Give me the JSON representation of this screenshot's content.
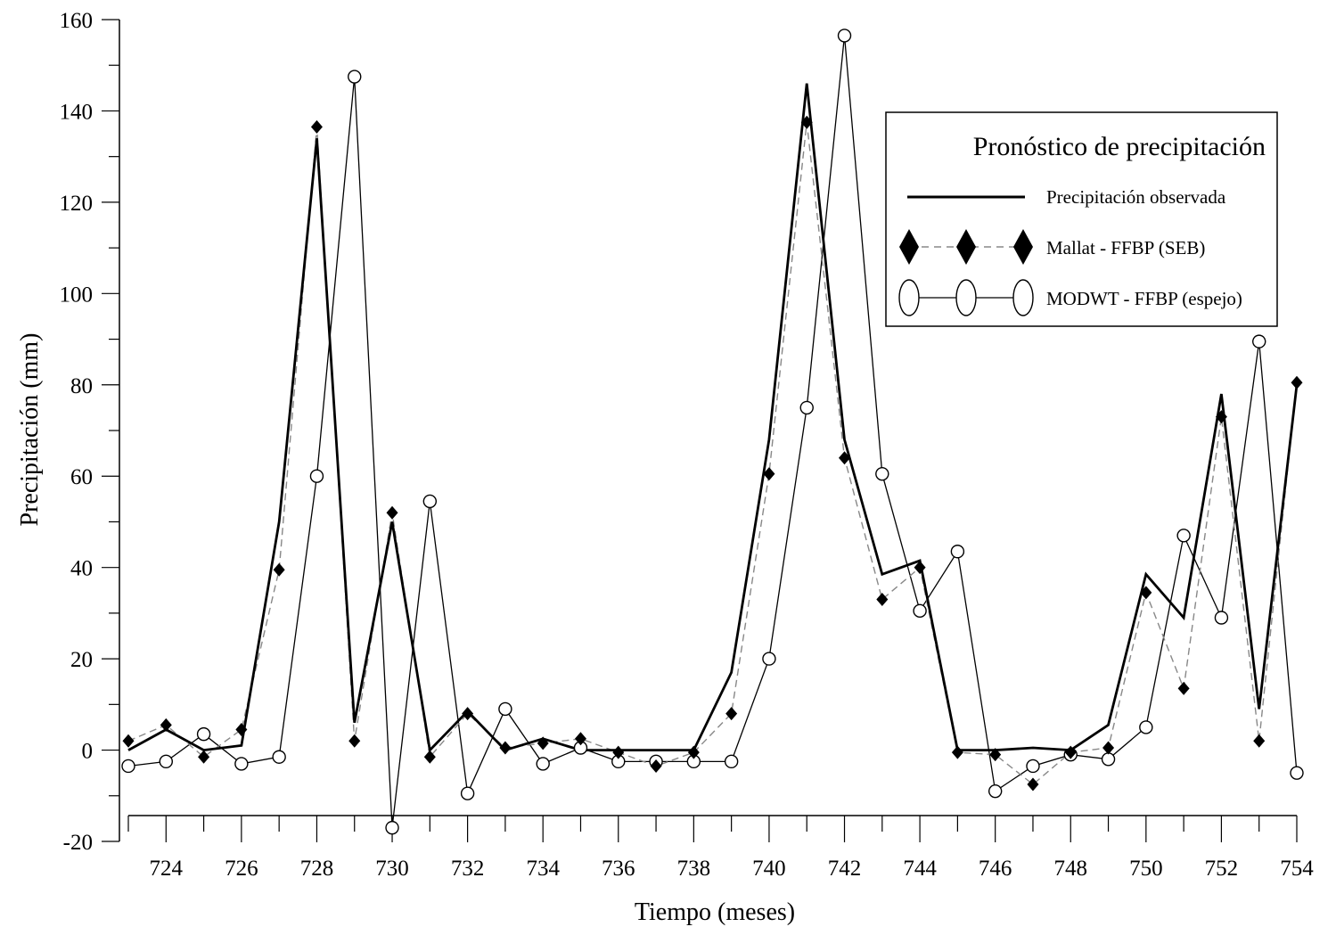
{
  "chart_data": {
    "type": "line",
    "title": "",
    "xlabel": "Tiempo (meses)",
    "ylabel": "Precipitación (mm)",
    "xlim": [
      723,
      754
    ],
    "ylim": [
      -20,
      160
    ],
    "x_ticks": [
      724,
      726,
      728,
      730,
      732,
      734,
      736,
      738,
      740,
      742,
      744,
      746,
      748,
      750,
      752,
      754
    ],
    "y_ticks": [
      -20,
      0,
      20,
      40,
      60,
      80,
      100,
      120,
      140,
      160
    ],
    "x": [
      723,
      724,
      725,
      726,
      727,
      728,
      729,
      730,
      731,
      732,
      733,
      734,
      735,
      736,
      737,
      738,
      739,
      740,
      741,
      742,
      743,
      744,
      745,
      746,
      747,
      748,
      749,
      750,
      751,
      752,
      753,
      754
    ],
    "legend": {
      "title": "Pronóstico de precipitación",
      "placement": "top-right"
    },
    "series": [
      {
        "name": "Precipitación observada",
        "style": "solid-thick",
        "color": "#000000",
        "values": [
          0,
          4.5,
          0,
          1,
          50,
          134,
          6,
          50,
          0,
          8.5,
          0,
          2.5,
          0,
          0,
          0,
          0,
          17,
          68,
          146,
          68,
          38.5,
          41.5,
          0,
          0,
          0.5,
          0,
          5.5,
          38.5,
          29,
          78,
          9,
          80
        ]
      },
      {
        "name": "Mallat - FFBP (SEB)",
        "style": "dashed-diamond",
        "color": "#000000",
        "values": [
          2,
          5.5,
          -1.5,
          4.5,
          39.5,
          136.5,
          2,
          52,
          -1.5,
          8,
          0.5,
          1.5,
          2.5,
          -0.5,
          -3.5,
          -0.5,
          8,
          60.5,
          137.5,
          64,
          33,
          40,
          -0.5,
          -1,
          -7.5,
          -0.5,
          0.5,
          34.5,
          13.5,
          73,
          2,
          80.5
        ]
      },
      {
        "name": "MODWT - FFBP (espejo)",
        "style": "solid-circle",
        "color": "#000000",
        "values": [
          -3.5,
          -2.5,
          3.5,
          -3,
          -1.5,
          60,
          147.5,
          -17,
          54.5,
          -9.5,
          9,
          -3,
          0.5,
          -2.5,
          -2.5,
          -2.5,
          -2.5,
          20,
          75,
          156.5,
          60.5,
          30.5,
          43.5,
          -9,
          -3.5,
          -1,
          -2,
          5,
          47,
          29,
          89.5,
          -5
        ]
      }
    ]
  }
}
